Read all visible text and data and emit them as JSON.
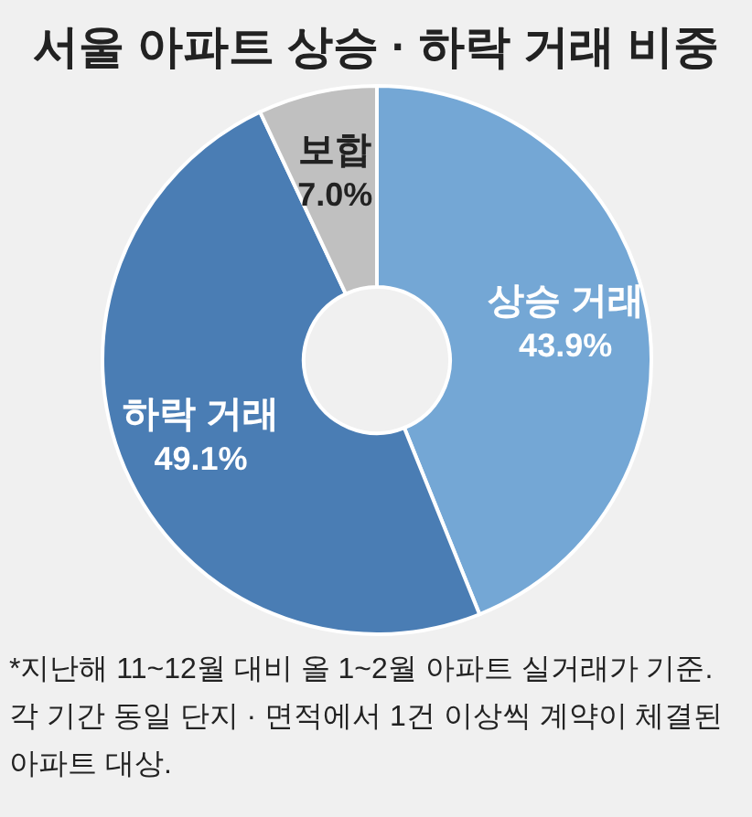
{
  "chart_data": {
    "type": "donut",
    "title": "서울 아파트 상승 · 하락 거래 비중",
    "categories": [
      "상승 거래",
      "하락 거래",
      "보합"
    ],
    "values": [
      43.9,
      49.1,
      7.0
    ],
    "colors": [
      "#74a7d5",
      "#4a7db4",
      "#c0c0c0"
    ],
    "value_labels": [
      "43.9%",
      "49.1%",
      "7.0%"
    ],
    "annotations": [
      "*지난해 11~12월 대비 올 1~2월 아파트 실거래가 기준. 각 기간 동일 단지 · 면적에서 1건 이상씩 계약이 체결된 아파트 대상."
    ]
  }
}
